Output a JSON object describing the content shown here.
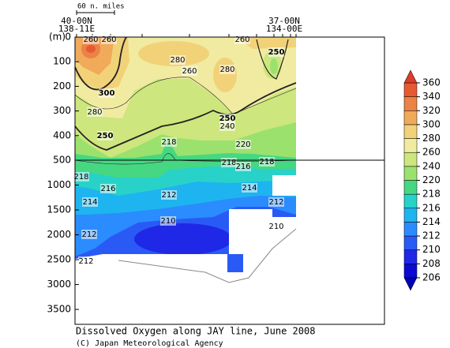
{
  "chart_data": {
    "type": "contour",
    "title": "Dissolved Oxygen along JAY line, June 2008",
    "credit": "(C) Japan Meteorological Agency",
    "y_label": "(m)",
    "scale_label": "60 n. miles",
    "stations": [
      {
        "lat": "40-00N",
        "lon": "138-11E"
      },
      {
        "lat": "37-00N",
        "lon": "134-00E"
      }
    ],
    "ylim": [
      0,
      500
    ],
    "yticks": [
      0,
      100,
      200,
      300,
      400,
      500
    ],
    "ylim_deep": [
      500,
      3800
    ],
    "yticks_deep": [
      1000,
      1500,
      2000,
      2500,
      3000,
      3500
    ],
    "levels": [
      206,
      208,
      210,
      212,
      214,
      216,
      218,
      220,
      240,
      260,
      280,
      300,
      320,
      340,
      360
    ],
    "colors": [
      "#0a0ad2",
      "#1e28e6",
      "#2a5af5",
      "#2a8cff",
      "#1eb4f0",
      "#28d2c8",
      "#46d782",
      "#9be16e",
      "#cde67d",
      "#f0eba0",
      "#f2d278",
      "#f0aa5a",
      "#eb8246",
      "#e65a32"
    ],
    "under_color": "#0000b4",
    "over_color": "#dc3c28",
    "contour_labels": [
      260,
      260,
      260,
      250,
      280,
      280,
      260,
      300,
      280,
      250,
      250,
      240,
      218,
      220,
      218,
      216,
      218,
      218,
      216,
      214,
      212,
      212,
      214,
      210,
      210,
      212,
      212
    ]
  }
}
